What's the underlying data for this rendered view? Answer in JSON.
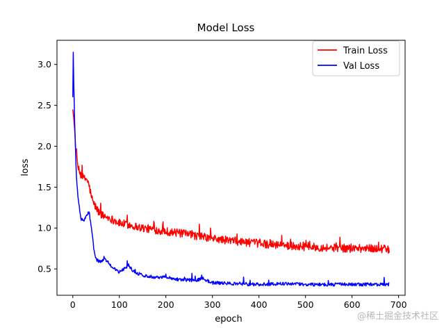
{
  "chart_data": {
    "type": "line",
    "title": "Model Loss",
    "xlabel": "epoch",
    "ylabel": "loss",
    "xlim": [
      -34,
      714
    ],
    "ylim": [
      0.178,
      3.295
    ],
    "xticks": [
      0,
      100,
      200,
      300,
      400,
      500,
      600,
      700
    ],
    "yticks": [
      0.5,
      1.0,
      1.5,
      2.0,
      2.5,
      3.0
    ],
    "xtick_labels": [
      "0",
      "100",
      "200",
      "300",
      "400",
      "500",
      "600",
      "700"
    ],
    "ytick_labels": [
      "0.5",
      "1.0",
      "1.5",
      "2.0",
      "2.5",
      "3.0"
    ],
    "legend_position": "upper right",
    "series": [
      {
        "name": "Train Loss",
        "color": "#ff0000",
        "key_points": [
          [
            0,
            2.45
          ],
          [
            2,
            2.35
          ],
          [
            5,
            2.1
          ],
          [
            8,
            1.85
          ],
          [
            12,
            1.72
          ],
          [
            18,
            1.64
          ],
          [
            25,
            1.6
          ],
          [
            30,
            1.6
          ],
          [
            35,
            1.52
          ],
          [
            40,
            1.38
          ],
          [
            45,
            1.3
          ],
          [
            55,
            1.2
          ],
          [
            65,
            1.15
          ],
          [
            80,
            1.12
          ],
          [
            100,
            1.06
          ],
          [
            120,
            1.04
          ],
          [
            150,
            1.0
          ],
          [
            200,
            0.96
          ],
          [
            250,
            0.92
          ],
          [
            300,
            0.87
          ],
          [
            350,
            0.84
          ],
          [
            400,
            0.81
          ],
          [
            450,
            0.79
          ],
          [
            500,
            0.77
          ],
          [
            550,
            0.76
          ],
          [
            600,
            0.75
          ],
          [
            650,
            0.75
          ],
          [
            680,
            0.74
          ]
        ],
        "noise_amplitude": 0.05
      },
      {
        "name": "Val Loss",
        "color": "#0000ff",
        "key_points": [
          [
            0,
            2.6
          ],
          [
            1,
            3.15
          ],
          [
            2,
            2.8
          ],
          [
            4,
            2.3
          ],
          [
            6,
            1.9
          ],
          [
            8,
            1.6
          ],
          [
            10,
            1.45
          ],
          [
            14,
            1.25
          ],
          [
            18,
            1.1
          ],
          [
            25,
            1.1
          ],
          [
            30,
            1.15
          ],
          [
            35,
            1.2
          ],
          [
            40,
            1.0
          ],
          [
            45,
            0.75
          ],
          [
            50,
            0.62
          ],
          [
            60,
            0.58
          ],
          [
            70,
            0.62
          ],
          [
            80,
            0.55
          ],
          [
            90,
            0.5
          ],
          [
            100,
            0.46
          ],
          [
            110,
            0.5
          ],
          [
            120,
            0.55
          ],
          [
            130,
            0.47
          ],
          [
            150,
            0.42
          ],
          [
            180,
            0.4
          ],
          [
            200,
            0.4
          ],
          [
            230,
            0.37
          ],
          [
            260,
            0.36
          ],
          [
            280,
            0.38
          ],
          [
            300,
            0.33
          ],
          [
            350,
            0.32
          ],
          [
            400,
            0.31
          ],
          [
            450,
            0.32
          ],
          [
            500,
            0.31
          ],
          [
            600,
            0.31
          ],
          [
            680,
            0.31
          ]
        ],
        "noise_amplitude": 0.02
      }
    ]
  },
  "watermark": "@稀土掘金技术社区"
}
